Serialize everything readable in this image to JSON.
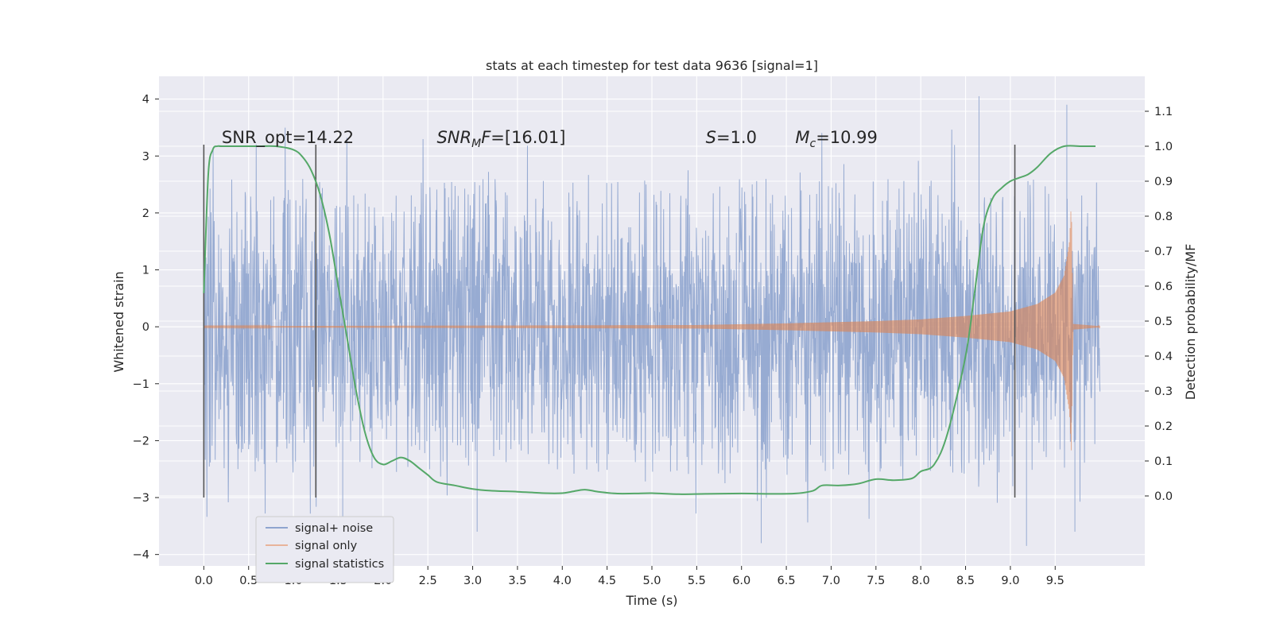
{
  "chart_data": {
    "type": "line",
    "title": "stats at each timestep for test data 9636 [signal=1]",
    "xlabel": "Time (s)",
    "ylabel_left": "Whitened strain",
    "ylabel_right": "Detection probability/MF",
    "xlim": [
      -0.5,
      10.5
    ],
    "ylim_left": [
      -4.2,
      4.4
    ],
    "ylim_right": [
      -0.2,
      1.2
    ],
    "x_ticks": [
      0.0,
      0.5,
      1.0,
      1.5,
      2.0,
      2.5,
      3.0,
      3.5,
      4.0,
      4.5,
      5.0,
      5.5,
      6.0,
      6.5,
      7.0,
      7.5,
      8.0,
      8.5,
      9.0,
      9.5
    ],
    "x_tick_labels": [
      "0.0",
      "0.5",
      "1.0",
      "1.5",
      "2.0",
      "2.5",
      "3.0",
      "3.5",
      "4.0",
      "4.5",
      "5.0",
      "5.5",
      "6.0",
      "6.5",
      "7.0",
      "7.5",
      "8.0",
      "8.5",
      "9.0",
      "9.5"
    ],
    "y_left_ticks": [
      4,
      3,
      2,
      1,
      0,
      -1,
      -2,
      -3,
      -4
    ],
    "y_left_tick_labels": [
      "4",
      "3",
      "2",
      "1",
      "0",
      "−1",
      "−2",
      "−3",
      "−4"
    ],
    "y_right_ticks": [
      1.1,
      1.0,
      0.9,
      0.8,
      0.7,
      0.6,
      0.5,
      0.4,
      0.3,
      0.2,
      0.1,
      0.0
    ],
    "y_right_tick_labels": [
      "1.1",
      "1.0",
      "0.9",
      "0.8",
      "0.7",
      "0.6",
      "0.5",
      "0.4",
      "0.3",
      "0.2",
      "0.1",
      "0.0"
    ],
    "grid": true,
    "legend_position": "lower-left",
    "annotations": [
      {
        "text": "SNR_opt=14.22",
        "x": 0.2,
        "y": 3.2,
        "italic": false
      },
      {
        "text": "SNR",
        "sub": "M",
        "tail": "F=[16.01]",
        "x": 2.6,
        "y": 3.2,
        "italic": true
      },
      {
        "text": "S",
        "tail": "=1.0",
        "x": 5.6,
        "y": 3.2,
        "italic": true
      },
      {
        "text": "M",
        "sub": "c",
        "tail": "=10.99",
        "x": 6.6,
        "y": 3.2,
        "italic": true
      }
    ],
    "vertical_markers": [
      {
        "x": 0.0,
        "y_range": [
          -3.0,
          3.2
        ]
      },
      {
        "x": 1.25,
        "y_range": [
          -3.0,
          3.2
        ]
      },
      {
        "x": 9.05,
        "y_range": [
          -3.0,
          3.2
        ]
      }
    ],
    "series": [
      {
        "name": "signal+ noise",
        "axis": "left",
        "color": "#8fa5cf",
        "x_range": [
          0.0,
          10.0
        ],
        "core_envelope": 1.3,
        "typical_peak": 2.6,
        "max": 4.05,
        "min": -3.85
      },
      {
        "name": "signal only",
        "axis": "left",
        "color": "#dd8452",
        "chirp_envelope": [
          [
            0.0,
            0.01
          ],
          [
            5.5,
            0.03
          ],
          [
            6.5,
            0.06
          ],
          [
            7.0,
            0.08
          ],
          [
            7.5,
            0.1
          ],
          [
            8.0,
            0.13
          ],
          [
            8.5,
            0.19
          ],
          [
            9.0,
            0.27
          ],
          [
            9.3,
            0.4
          ],
          [
            9.5,
            0.6
          ],
          [
            9.6,
            0.9
          ],
          [
            9.66,
            1.5
          ],
          [
            9.68,
            2.2
          ],
          [
            9.7,
            0.05
          ],
          [
            10.0,
            0.01
          ]
        ]
      },
      {
        "name": "signal statistics",
        "axis": "right",
        "color": "#55a868",
        "x": [
          0.0,
          0.05,
          0.1,
          0.15,
          0.2,
          0.4,
          0.6,
          0.8,
          1.0,
          1.1,
          1.2,
          1.3,
          1.4,
          1.5,
          1.6,
          1.7,
          1.8,
          1.9,
          2.0,
          2.1,
          2.2,
          2.3,
          2.4,
          2.5,
          2.6,
          2.8,
          3.0,
          3.2,
          3.5,
          3.8,
          4.0,
          4.1,
          4.25,
          4.4,
          4.6,
          4.8,
          5.0,
          5.3,
          5.6,
          6.0,
          6.3,
          6.6,
          6.8,
          6.9,
          7.1,
          7.3,
          7.5,
          7.7,
          7.9,
          8.0,
          8.15,
          8.3,
          8.5,
          8.6,
          8.7,
          8.8,
          8.9,
          9.0,
          9.1,
          9.2,
          9.3,
          9.45,
          9.6,
          9.8,
          9.95
        ],
        "values": [
          0.58,
          0.92,
          0.99,
          1.0,
          1.0,
          1.0,
          1.0,
          1.0,
          0.99,
          0.97,
          0.93,
          0.86,
          0.75,
          0.6,
          0.45,
          0.3,
          0.18,
          0.11,
          0.09,
          0.1,
          0.11,
          0.1,
          0.08,
          0.06,
          0.04,
          0.03,
          0.02,
          0.015,
          0.012,
          0.008,
          0.008,
          0.012,
          0.018,
          0.012,
          0.007,
          0.007,
          0.008,
          0.005,
          0.006,
          0.007,
          0.006,
          0.007,
          0.015,
          0.03,
          0.03,
          0.035,
          0.048,
          0.045,
          0.05,
          0.07,
          0.09,
          0.18,
          0.4,
          0.58,
          0.77,
          0.85,
          0.88,
          0.9,
          0.91,
          0.92,
          0.94,
          0.98,
          1.0,
          1.0,
          1.0
        ]
      }
    ]
  }
}
